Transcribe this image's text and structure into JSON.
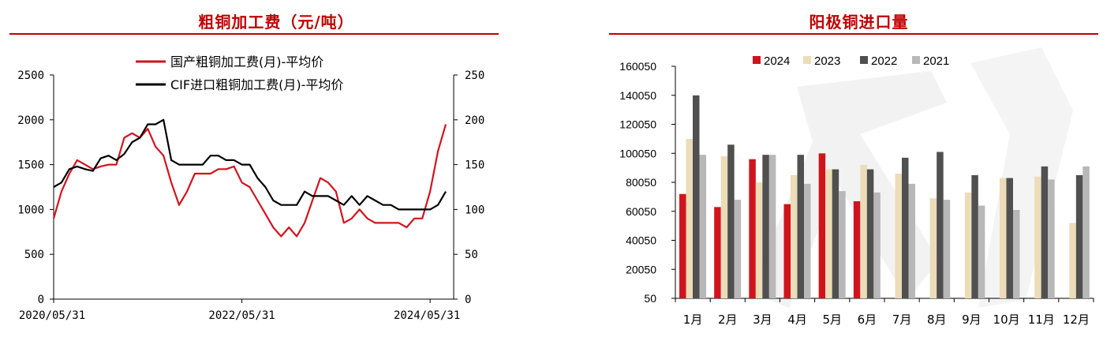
{
  "chart_data": [
    {
      "type": "line",
      "title": "粗铜加工费（元/吨）",
      "x_ticks": [
        "2020/05/31",
        "2022/05/31",
        "2024/05/31"
      ],
      "y_left_ticks": [
        "0",
        "500",
        "1000",
        "1500",
        "2000",
        "2500"
      ],
      "y_right_ticks": [
        "0",
        "50",
        "100",
        "150",
        "200",
        "250"
      ],
      "ylim_left": [
        0,
        2500
      ],
      "ylim_right": [
        0,
        250
      ],
      "x_range": [
        "2020/05",
        "2024/07"
      ],
      "legend_position": "top-center",
      "series": [
        {
          "name": "国产粗铜加工费(月)-平均价",
          "axis": "left",
          "color": "#d0141e",
          "values": [
            900,
            1200,
            1400,
            1550,
            1500,
            1450,
            1480,
            1500,
            1500,
            1800,
            1850,
            1800,
            1900,
            1700,
            1600,
            1300,
            1050,
            1200,
            1400,
            1400,
            1400,
            1450,
            1450,
            1480,
            1300,
            1250,
            1100,
            950,
            800,
            700,
            800,
            700,
            850,
            1100,
            1350,
            1300,
            1200,
            850,
            900,
            1000,
            900,
            850,
            850,
            850,
            850,
            800,
            900,
            900,
            1200,
            1650,
            1950
          ]
        },
        {
          "name": "CIF进口粗铜加工费(月)-平均价",
          "axis": "right",
          "color": "#000000",
          "values": [
            125,
            130,
            145,
            148,
            145,
            143,
            157,
            160,
            155,
            162,
            175,
            180,
            195,
            195,
            200,
            155,
            150,
            150,
            150,
            150,
            160,
            160,
            155,
            155,
            150,
            150,
            135,
            125,
            110,
            105,
            105,
            105,
            120,
            115,
            115,
            115,
            110,
            105,
            115,
            105,
            115,
            110,
            105,
            105,
            100,
            100,
            100,
            100,
            100,
            105,
            120
          ]
        }
      ]
    },
    {
      "type": "bar",
      "title": "阳极铜进口量",
      "categories": [
        "1月",
        "2月",
        "3月",
        "4月",
        "5月",
        "6月",
        "7月",
        "8月",
        "9月",
        "10月",
        "11月",
        "12月"
      ],
      "y_ticks": [
        "50",
        "20050",
        "40050",
        "60050",
        "80050",
        "100050",
        "120050",
        "140050",
        "160050"
      ],
      "ylim": [
        50,
        160050
      ],
      "legend_position": "top-center",
      "series": [
        {
          "name": "2024",
          "color": "#d0141e",
          "values": [
            72000,
            63000,
            96000,
            65000,
            100000,
            67000,
            null,
            null,
            null,
            null,
            null,
            null
          ]
        },
        {
          "name": "2023",
          "color": "#ecdcb8",
          "values": [
            110000,
            98000,
            80000,
            85000,
            89000,
            92000,
            86000,
            69000,
            73000,
            83000,
            84000,
            52000
          ]
        },
        {
          "name": "2022",
          "color": "#505050",
          "values": [
            140000,
            106000,
            99000,
            99000,
            89000,
            89000,
            97000,
            101000,
            85000,
            83000,
            91000,
            85000
          ]
        },
        {
          "name": "2021",
          "color": "#b8b8b8",
          "values": [
            99000,
            68000,
            99000,
            79000,
            74000,
            73000,
            79000,
            68000,
            64000,
            61000,
            82000,
            91000
          ]
        }
      ]
    }
  ]
}
